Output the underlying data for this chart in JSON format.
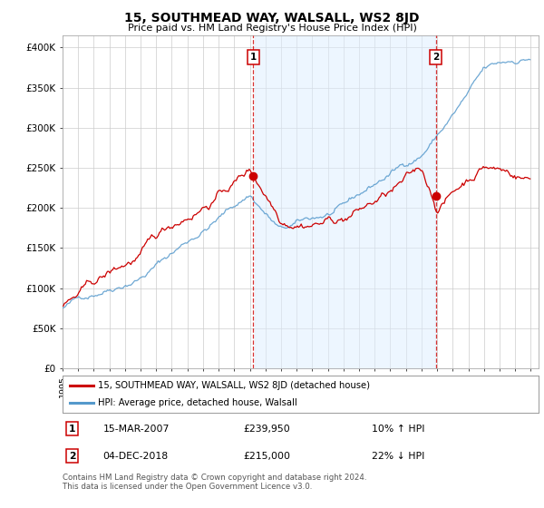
{
  "title": "15, SOUTHMEAD WAY, WALSALL, WS2 8JD",
  "subtitle": "Price paid vs. HM Land Registry's House Price Index (HPI)",
  "ylabel_ticks": [
    0,
    50000,
    100000,
    150000,
    200000,
    250000,
    300000,
    350000,
    400000
  ],
  "ylabel_labels": [
    "£0",
    "£50K",
    "£100K",
    "£150K",
    "£200K",
    "£250K",
    "£300K",
    "£350K",
    "£400K"
  ],
  "ylim": [
    0,
    415000
  ],
  "xlim_start": 1995.0,
  "xlim_end": 2025.5,
  "legend_line1": "15, SOUTHMEAD WAY, WALSALL, WS2 8JD (detached house)",
  "legend_line2": "HPI: Average price, detached house, Walsall",
  "sale1_date": "15-MAR-2007",
  "sale1_price": "£239,950",
  "sale1_hpi": "10% ↑ HPI",
  "sale1_x": 2007.21,
  "sale1_y": 239950,
  "sale2_date": "04-DEC-2018",
  "sale2_price": "£215,000",
  "sale2_hpi": "22% ↓ HPI",
  "sale2_x": 2018.92,
  "sale2_y": 215000,
  "footnote": "Contains HM Land Registry data © Crown copyright and database right 2024.\nThis data is licensed under the Open Government Licence v3.0.",
  "line_color_red": "#cc0000",
  "line_color_blue": "#5599cc",
  "shade_color": "#ddeeff",
  "bg_color": "#ffffff",
  "grid_color": "#cccccc",
  "xtick_years": [
    1995,
    1996,
    1997,
    1998,
    1999,
    2000,
    2001,
    2002,
    2003,
    2004,
    2005,
    2006,
    2007,
    2008,
    2009,
    2010,
    2011,
    2012,
    2013,
    2014,
    2015,
    2016,
    2017,
    2018,
    2019,
    2020,
    2021,
    2022,
    2023,
    2024,
    2025
  ]
}
